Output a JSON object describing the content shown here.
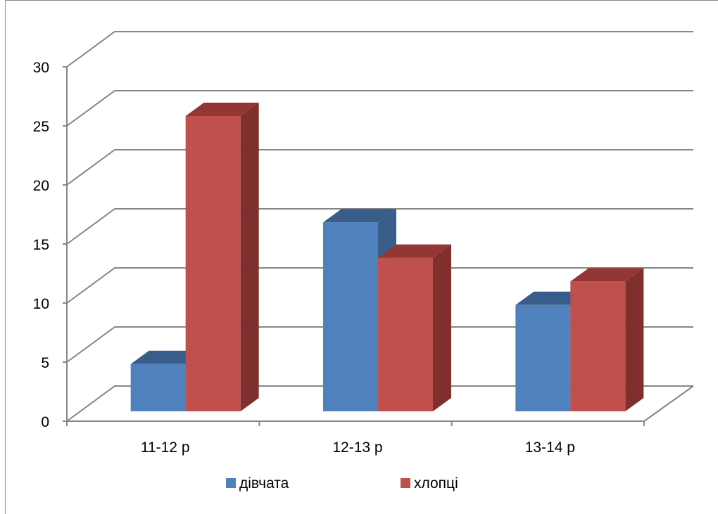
{
  "chart_data": {
    "type": "bar",
    "style": "3d-clustered-column",
    "categories": [
      "11-12 р",
      "12-13 р",
      "13-14 р"
    ],
    "series": [
      {
        "name": "дівчата",
        "values": [
          4,
          16,
          9
        ],
        "color": "#4F81BD",
        "top_color": "#385D8A",
        "side_color": "#385D8A"
      },
      {
        "name": "хлопці",
        "values": [
          25,
          13,
          11
        ],
        "color": "#C0504D",
        "top_color": "#943634",
        "side_color": "#7F2F2D"
      }
    ],
    "ylim": [
      0,
      30
    ],
    "yticks": [
      0,
      5,
      10,
      15,
      20,
      25,
      30
    ],
    "grid": true,
    "legend_position": "bottom",
    "title": "",
    "xlabel": "",
    "ylabel": ""
  }
}
